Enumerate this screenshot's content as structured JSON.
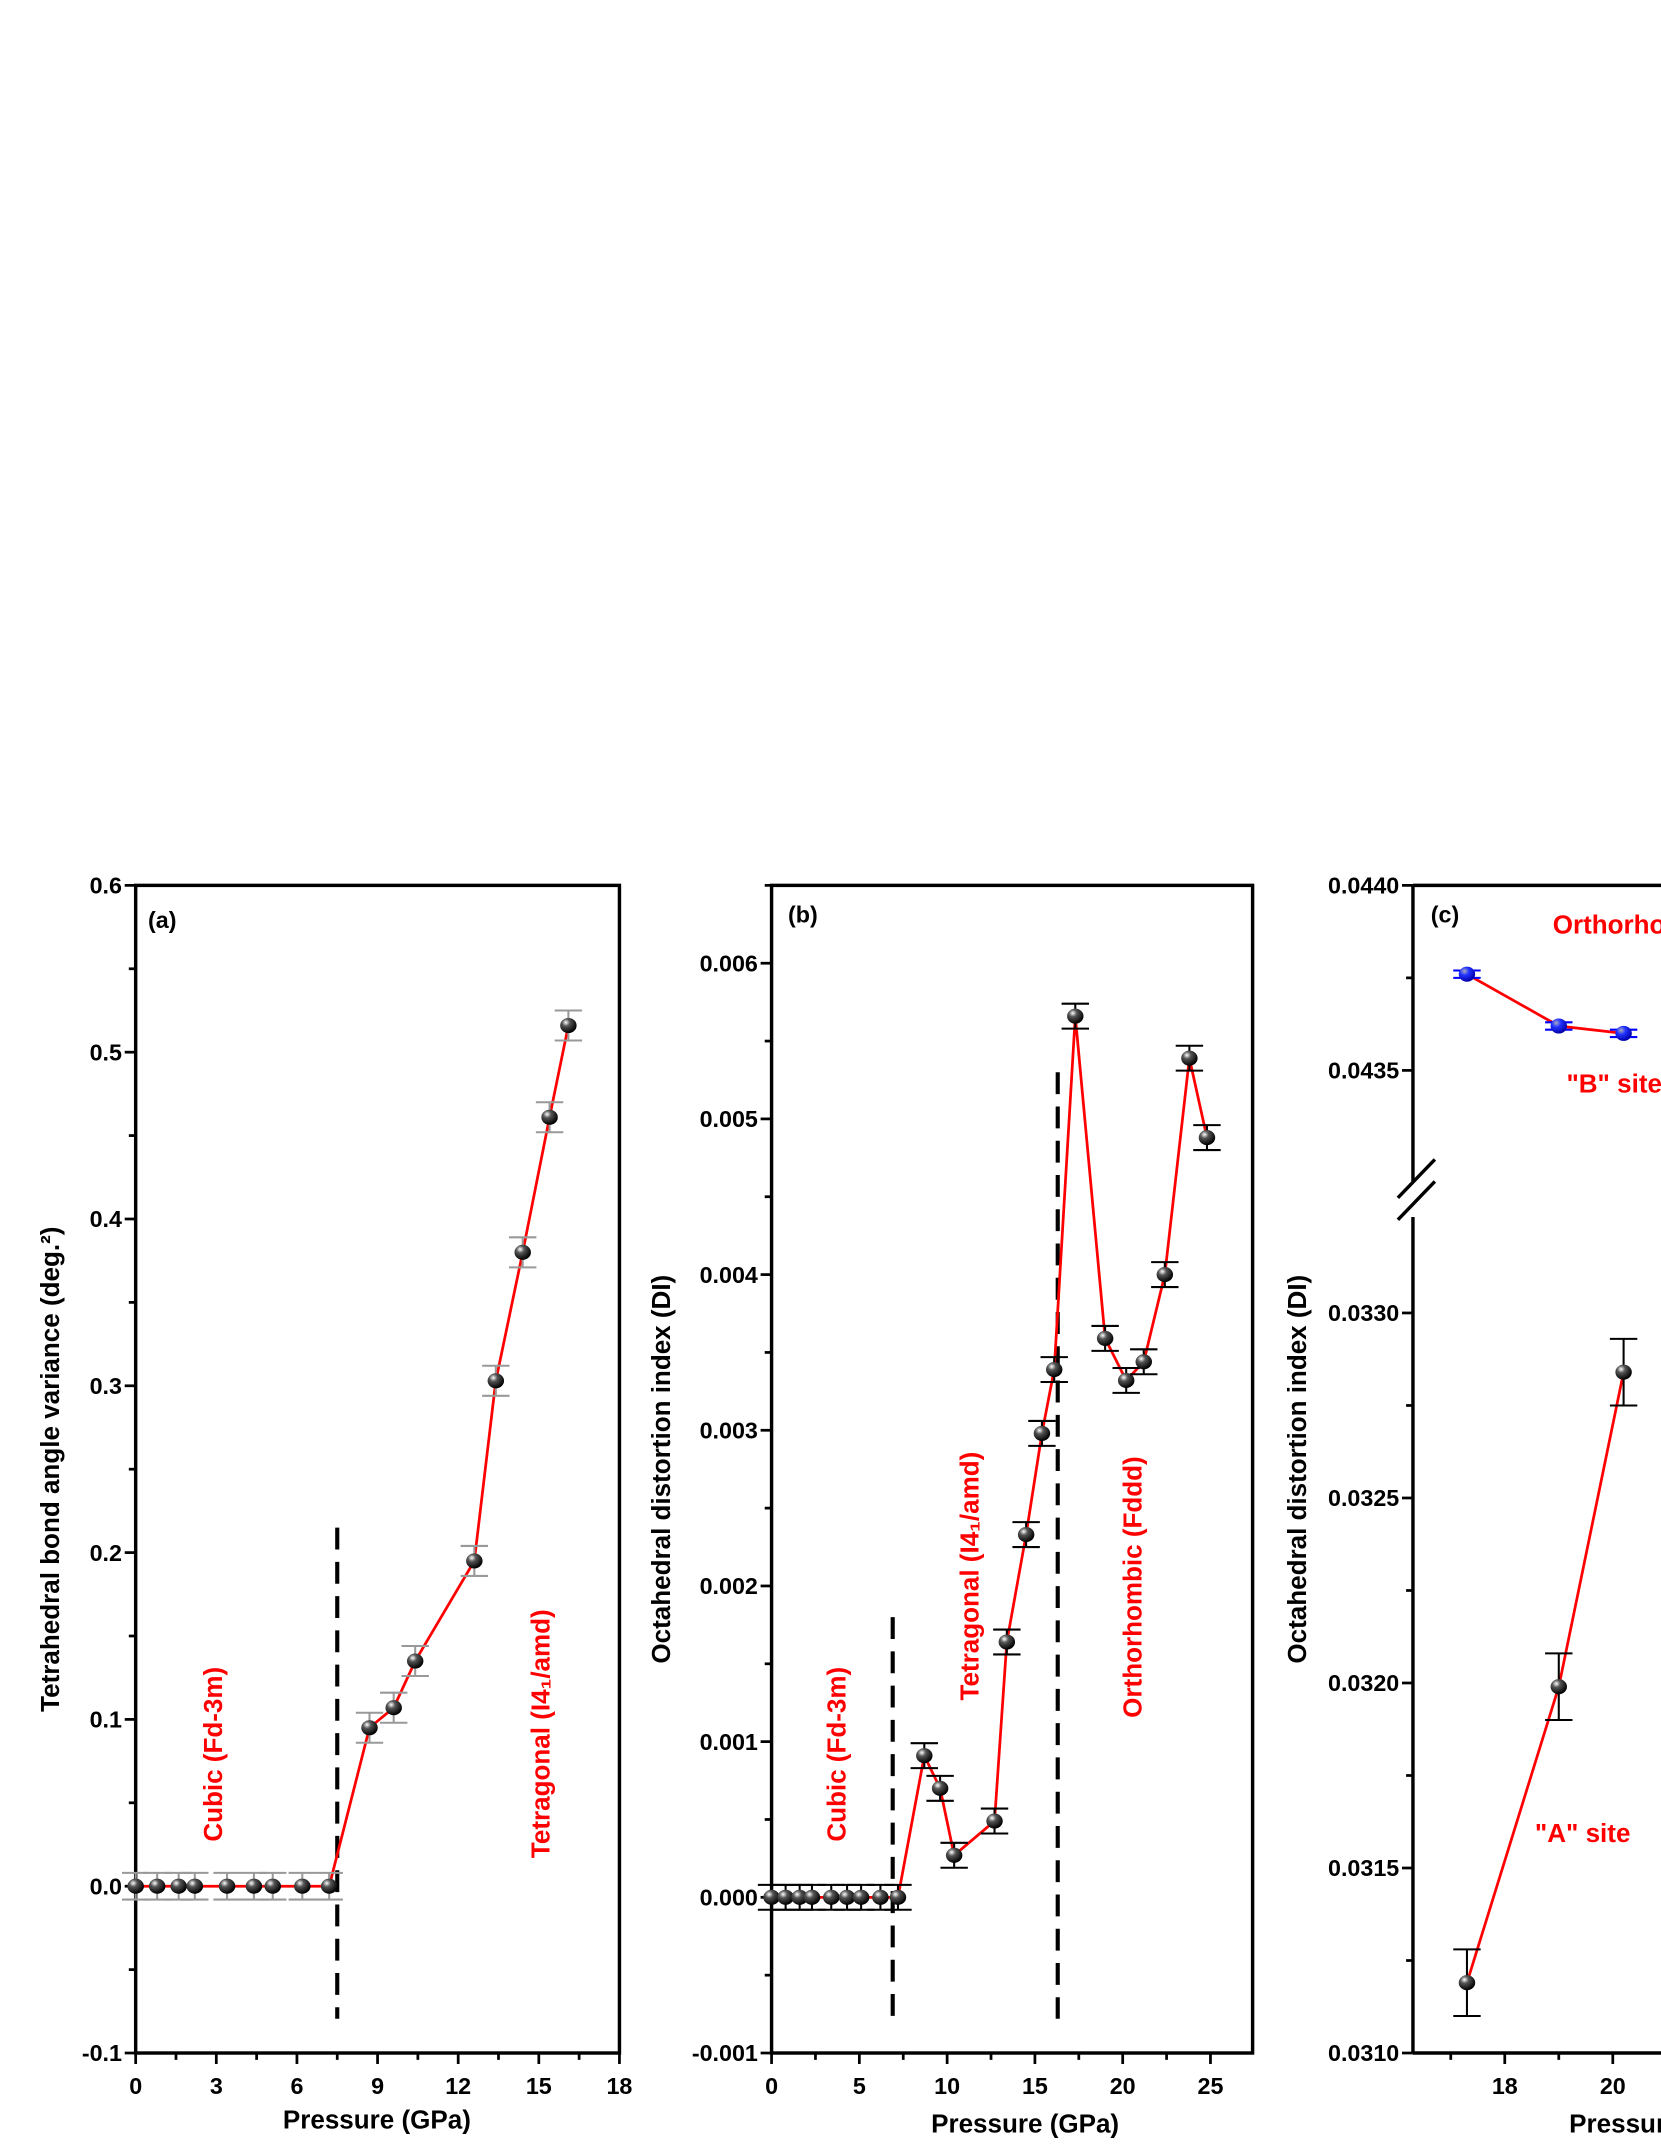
{
  "chart_data": [
    {
      "type": "scatter",
      "panel_label": "(a)",
      "xlabel": "Pressure (GPa)",
      "ylabel": "Tetrahedral bond angle variance (deg.²)",
      "xlim": [
        0,
        18
      ],
      "ylim": [
        -0.1,
        0.6
      ],
      "xticks": [
        0,
        3,
        6,
        9,
        12,
        15,
        18
      ],
      "yticks": [
        -0.1,
        0.0,
        0.1,
        0.2,
        0.3,
        0.4,
        0.5,
        0.6
      ],
      "ytick_labels": [
        "-0.1",
        "0.0",
        "0.1",
        "0.2",
        "0.3",
        "0.4",
        "0.5",
        "0.6"
      ],
      "x": [
        0,
        0.8,
        1.6,
        2.2,
        3.4,
        4.4,
        5.1,
        6.2,
        7.2,
        8.7,
        9.6,
        10.4,
        12.6,
        13.4,
        14.4,
        15.4,
        16.1
      ],
      "y": [
        0,
        0,
        0,
        0,
        0,
        0,
        0,
        0,
        0,
        0.095,
        0.107,
        0.135,
        0.195,
        0.303,
        0.38,
        0.461,
        0.516
      ],
      "yerr": [
        0.008,
        0.008,
        0.008,
        0.008,
        0.008,
        0.008,
        0.008,
        0.008,
        0.008,
        0.009,
        0.009,
        0.009,
        0.009,
        0.009,
        0.009,
        0.009,
        0.009
      ],
      "line_color": "#ff0000",
      "marker_color": "#000000",
      "errorbar_color": "#999999",
      "phase_boundaries": [
        7.5
      ],
      "annotations": [
        "Cubic (Fd-3m)",
        "Tetragonal (I4₁/amd)"
      ]
    },
    {
      "type": "scatter",
      "panel_label": "(b)",
      "xlabel": "Pressure (GPa)",
      "ylabel": "Octahedral distortion index (DI)",
      "xlim": [
        0,
        27.4
      ],
      "ylim": [
        -0.001,
        0.0065
      ],
      "xticks": [
        0,
        5,
        10,
        15,
        20,
        25
      ],
      "yticks": [
        -0.001,
        0.0,
        0.001,
        0.002,
        0.003,
        0.004,
        0.005,
        0.006
      ],
      "ytick_labels": [
        "-0.001",
        "0.000",
        "0.001",
        "0.002",
        "0.003",
        "0.004",
        "0.005",
        "0.006"
      ],
      "x": [
        0,
        0.8,
        1.6,
        2.3,
        3.4,
        4.3,
        5.1,
        6.2,
        7.2,
        8.7,
        9.6,
        10.4,
        12.7,
        13.4,
        14.5,
        15.4,
        16.1,
        17.3,
        19.0,
        20.2,
        21.2,
        22.4,
        23.8,
        24.8
      ],
      "y": [
        0,
        0,
        0,
        0,
        0,
        0,
        0,
        0,
        0,
        0.00091,
        0.0007,
        0.00027,
        0.00049,
        0.00164,
        0.00233,
        0.00298,
        0.00339,
        0.00566,
        0.00359,
        0.00332,
        0.00344,
        0.004,
        0.00539,
        0.00488
      ],
      "yerr": 8e-05,
      "line_color": "#ff0000",
      "marker_color": "#000000",
      "errorbar_color": "#000000",
      "phase_boundaries": [
        6.9,
        16.3
      ],
      "annotations": [
        "Cubic (Fd-3m)",
        "Tetragonal (I4₁/amd)",
        "Orthorhombic (Fddd)"
      ]
    },
    {
      "type": "scatter",
      "panel_label": "(c)",
      "xlabel": "Pressure (GPa)",
      "ylabel": "Octahedral distortion index (DI)",
      "xlim": [
        16.3,
        21
      ],
      "y_break": [
        0.0331,
        0.0432
      ],
      "ylim": [
        0.031,
        0.044
      ],
      "xticks": [
        18,
        20
      ],
      "yticks": [
        0.031,
        0.0315,
        0.032,
        0.0325,
        0.033,
        0.043,
        0.0435,
        0.044
      ],
      "ytick_labels": [
        "0.0310",
        "0.0315",
        "0.0320",
        "0.0325",
        "0.0330",
        "",
        "0.0435",
        "0.0440"
      ],
      "series": [
        {
          "name": "\"B\" site",
          "x": [
            17.3,
            19.0,
            20.2
          ],
          "y": [
            0.04376,
            0.04362,
            0.0436
          ],
          "yerr": 1e-05,
          "marker_color": "#0000ff"
        },
        {
          "name": "\"A\" site",
          "x": [
            17.3,
            19.0,
            20.2
          ],
          "y": [
            0.03119,
            0.03199,
            0.03284
          ],
          "yerr": 9e-05,
          "marker_color": "#000000"
        }
      ],
      "line_color": "#ff0000",
      "annotations": [
        "Orthorhombic"
      ]
    }
  ]
}
